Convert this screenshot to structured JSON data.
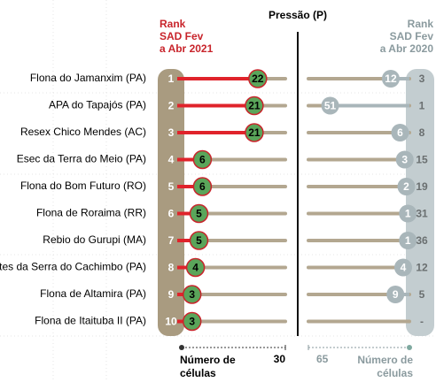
{
  "chart_data": {
    "type": "ranked-dot",
    "title": "Pressão (P)",
    "left_header": [
      "Rank",
      "SAD Fev",
      "a Abr 2021"
    ],
    "right_header": [
      "Rank",
      "SAD Fev",
      "a Abr 2020"
    ],
    "categories": [
      "Flona do Jamanxim (PA)",
      "APA do Tapajós (PA)",
      "Resex Chico Mendes (AC)",
      "Esec da Terra do Meio (PA)",
      "Flona do Bom Futuro (RO)",
      "Flona de Roraima (RR)",
      "Rebio do Gurupi (MA)",
      "entes da Serra do Cachimbo (PA)",
      "Flona de Altamira (PA)",
      "Flona de Itaituba II (PA)"
    ],
    "ranks": [
      1,
      2,
      3,
      4,
      5,
      6,
      7,
      8,
      9,
      10
    ],
    "values": [
      22,
      21,
      21,
      6,
      6,
      5,
      5,
      4,
      3,
      3
    ],
    "xlim": [
      0,
      30
    ],
    "xticks": [
      30
    ],
    "x_label": [
      "Número de",
      "células"
    ],
    "ranks_2020": [
      3,
      1,
      8,
      15,
      19,
      31,
      36,
      12,
      5,
      "-"
    ],
    "values_2020": [
      12,
      51,
      6,
      3,
      2,
      1,
      1,
      4,
      9,
      null
    ],
    "x2lim": [
      0,
      65
    ],
    "x2ticks": [
      65
    ],
    "x2_label": [
      "Número de",
      "células"
    ],
    "color": "#5aa55a",
    "color_2020": "#a9b6ba"
  }
}
